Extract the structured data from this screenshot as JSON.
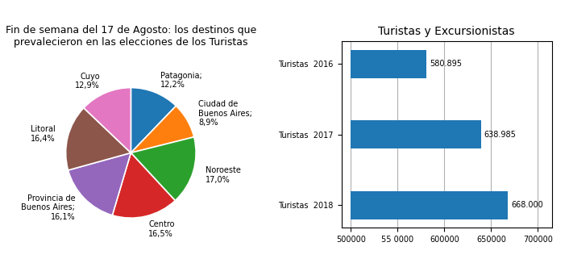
{
  "chart_data": [
    {
      "type": "pie",
      "title": "Fin de semana del 17 de Agosto: los destinos que\nprevalecieron en las elecciones de los Turistas",
      "categories": [
        "Patagonia;\n12,2%",
        "Ciudad de\nBuenos Aires;\n8,9%",
        "Noroeste\n17,0%",
        "Centro\n16,5%",
        "Provincia de\nBuenos Aires;\n16,1%",
        "Litoral\n16,4%",
        "Cuyo\n12,9%"
      ],
      "values": [
        12.2,
        8.9,
        17.0,
        16.5,
        16.1,
        16.4,
        12.9
      ]
    },
    {
      "type": "bar",
      "orientation": "horizontal",
      "title": "Turistas y Excursionistas",
      "categories": [
        "Turistas  2016",
        "Turistas  2017",
        "Turistas  2018"
      ],
      "values": [
        580895,
        638985,
        668000
      ],
      "value_labels": [
        "580.895",
        "638.985",
        "668.000"
      ],
      "data_labels": true,
      "base": 500000,
      "xlim": [
        490000,
        715000
      ],
      "xticks": [
        500000,
        {
          "value": 550000,
          "label": "55 0000"
        },
        600000,
        650000,
        700000
      ],
      "grid": true
    }
  ]
}
